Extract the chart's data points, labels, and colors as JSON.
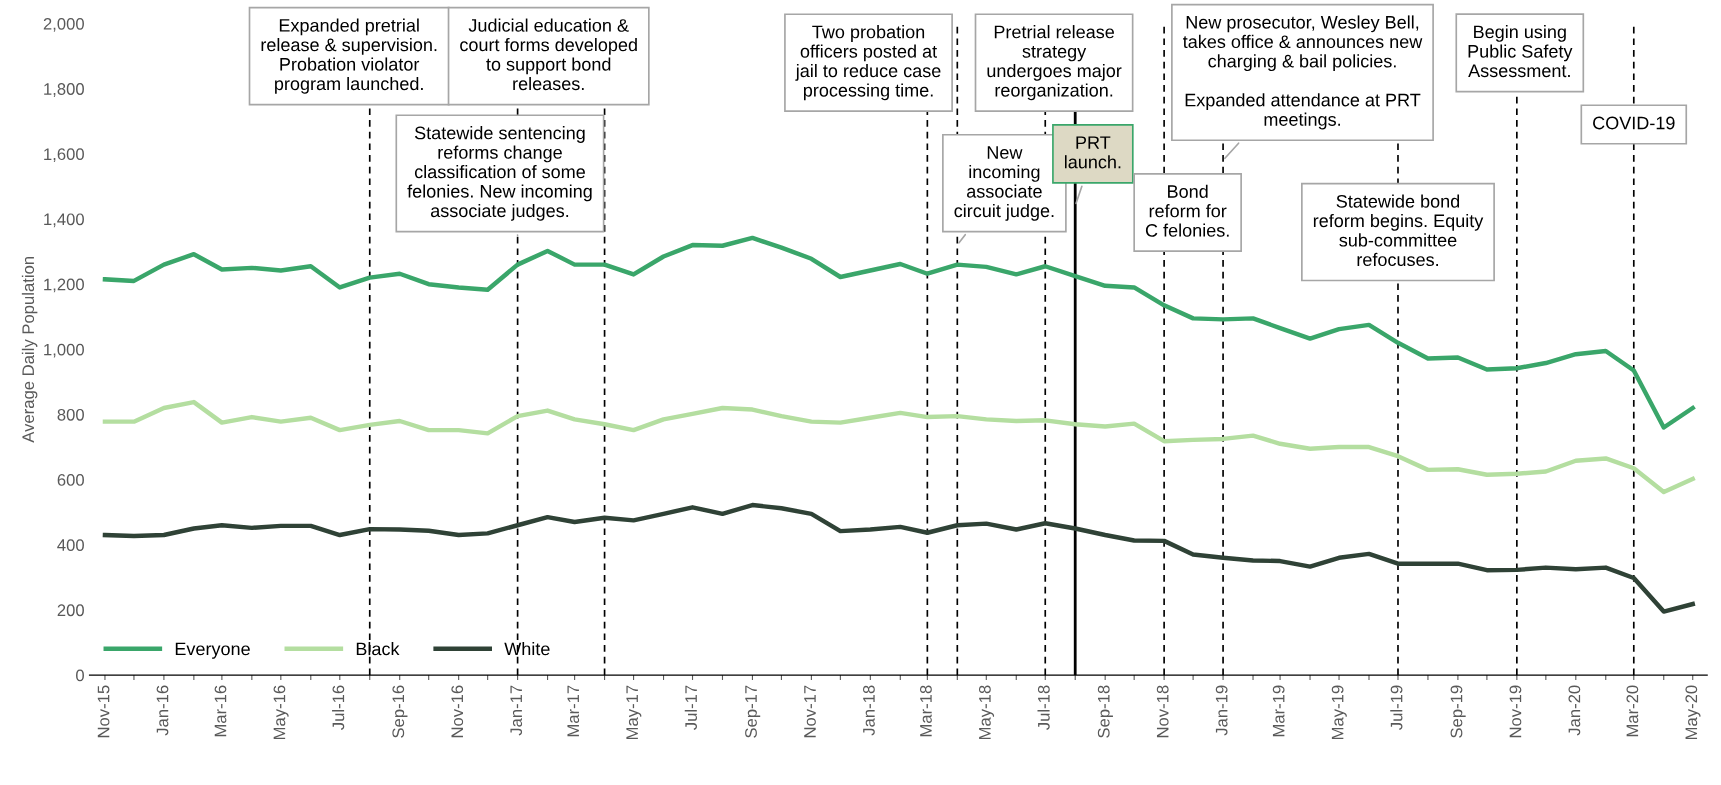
{
  "chart_data": {
    "type": "line",
    "ylabel": "Average Daily Population",
    "x": [
      "2015-11",
      "2015-12",
      "2016-01",
      "2016-02",
      "2016-03",
      "2016-04",
      "2016-05",
      "2016-06",
      "2016-07",
      "2016-08",
      "2016-09",
      "2016-10",
      "2016-11",
      "2016-12",
      "2017-01",
      "2017-02",
      "2017-03",
      "2017-04",
      "2017-05",
      "2017-06",
      "2017-07",
      "2017-08",
      "2017-09",
      "2017-10",
      "2017-11",
      "2017-12",
      "2018-01",
      "2018-02",
      "2018-03",
      "2018-04",
      "2018-05",
      "2018-06",
      "2018-07",
      "2018-08",
      "2018-09",
      "2018-10",
      "2018-11",
      "2018-12",
      "2019-01",
      "2019-02",
      "2019-03",
      "2019-04",
      "2019-05",
      "2019-06",
      "2019-07",
      "2019-08",
      "2019-09",
      "2019-10",
      "2019-11",
      "2019-12",
      "2020-01",
      "2020-02",
      "2020-03",
      "2020-04",
      "2020-05"
    ],
    "series": [
      {
        "name": "Everyone",
        "color": "#3aa66a",
        "values": [
          1215,
          1210,
          1260,
          1292,
          1245,
          1250,
          1242,
          1255,
          1190,
          1220,
          1232,
          1200,
          1190,
          1183,
          1260,
          1302,
          1260,
          1260,
          1230,
          1285,
          1320,
          1318,
          1342,
          1312,
          1278,
          1222,
          1242,
          1262,
          1232,
          1260,
          1253,
          1230,
          1255,
          1225,
          1195,
          1190,
          1135,
          1095,
          1092,
          1095,
          1065,
          1033,
          1062,
          1075,
          1020,
          972,
          975,
          938,
          942,
          958,
          985,
          995,
          935,
          760,
          820
        ]
      },
      {
        "name": "Black",
        "color": "#b4dea0",
        "values": [
          778,
          778,
          820,
          838,
          775,
          792,
          778,
          790,
          752,
          768,
          780,
          752,
          752,
          742,
          795,
          812,
          785,
          770,
          752,
          785,
          802,
          820,
          815,
          795,
          778,
          775,
          790,
          805,
          792,
          795,
          785,
          780,
          782,
          770,
          763,
          772,
          718,
          722,
          725,
          735,
          710,
          695,
          700,
          700,
          672,
          630,
          632,
          615,
          618,
          625,
          658,
          665,
          635,
          562,
          602
        ]
      },
      {
        "name": "White",
        "color": "#2f4236",
        "values": [
          430,
          427,
          430,
          450,
          460,
          452,
          458,
          458,
          430,
          448,
          447,
          443,
          430,
          435,
          460,
          485,
          470,
          483,
          475,
          495,
          515,
          495,
          522,
          512,
          495,
          442,
          447,
          455,
          437,
          460,
          465,
          447,
          466,
          450,
          430,
          413,
          412,
          370,
          360,
          352,
          350,
          333,
          360,
          372,
          342,
          342,
          342,
          322,
          323,
          330,
          325,
          330,
          298,
          195,
          218
        ]
      }
    ],
    "xlim": [
      "2015-10-16",
      "2020-05-16"
    ],
    "xticks": [
      {
        "value": "2015-11",
        "label": "Nov-15"
      },
      {
        "value": "2015-12",
        "label": null
      },
      {
        "value": "2016-01",
        "label": "Jan-16"
      },
      {
        "value": "2016-02",
        "label": null
      },
      {
        "value": "2016-03",
        "label": "Mar-16"
      },
      {
        "value": "2016-04",
        "label": null
      },
      {
        "value": "2016-05",
        "label": "May-16"
      },
      {
        "value": "2016-06",
        "label": null
      },
      {
        "value": "2016-07",
        "label": "Jul-16"
      },
      {
        "value": "2016-08",
        "label": null
      },
      {
        "value": "2016-09",
        "label": "Sep-16"
      },
      {
        "value": "2016-10",
        "label": null
      },
      {
        "value": "2016-11",
        "label": "Nov-16"
      },
      {
        "value": "2016-12",
        "label": null
      },
      {
        "value": "2017-01",
        "label": "Jan-17"
      },
      {
        "value": "2017-02",
        "label": null
      },
      {
        "value": "2017-03",
        "label": "Mar-17"
      },
      {
        "value": "2017-04",
        "label": null
      },
      {
        "value": "2017-05",
        "label": "May-17"
      },
      {
        "value": "2017-06",
        "label": null
      },
      {
        "value": "2017-07",
        "label": "Jul-17"
      },
      {
        "value": "2017-08",
        "label": null
      },
      {
        "value": "2017-09",
        "label": "Sep-17"
      },
      {
        "value": "2017-10",
        "label": null
      },
      {
        "value": "2017-11",
        "label": "Nov-17"
      },
      {
        "value": "2017-12",
        "label": null
      },
      {
        "value": "2018-01",
        "label": "Jan-18"
      },
      {
        "value": "2018-02",
        "label": null
      },
      {
        "value": "2018-03",
        "label": "Mar-18"
      },
      {
        "value": "2018-04",
        "label": null
      },
      {
        "value": "2018-05",
        "label": "May-18"
      },
      {
        "value": "2018-06",
        "label": null
      },
      {
        "value": "2018-07",
        "label": "Jul-18"
      },
      {
        "value": "2018-08",
        "label": null
      },
      {
        "value": "2018-09",
        "label": "Sep-18"
      },
      {
        "value": "2018-10",
        "label": null
      },
      {
        "value": "2018-11",
        "label": "Nov-18"
      },
      {
        "value": "2018-12",
        "label": null
      },
      {
        "value": "2019-01",
        "label": "Jan-19"
      },
      {
        "value": "2019-02",
        "label": null
      },
      {
        "value": "2019-03",
        "label": "Mar-19"
      },
      {
        "value": "2019-04",
        "label": null
      },
      {
        "value": "2019-05",
        "label": "May-19"
      },
      {
        "value": "2019-06",
        "label": null
      },
      {
        "value": "2019-07",
        "label": "Jul-19"
      },
      {
        "value": "2019-08",
        "label": null
      },
      {
        "value": "2019-09",
        "label": "Sep-19"
      },
      {
        "value": "2019-10",
        "label": null
      },
      {
        "value": "2019-11",
        "label": "Nov-19"
      },
      {
        "value": "2019-12",
        "label": null
      },
      {
        "value": "2020-01",
        "label": "Jan-20"
      },
      {
        "value": "2020-02",
        "label": null
      },
      {
        "value": "2020-03",
        "label": "Mar-20"
      },
      {
        "value": "2020-04",
        "label": null
      },
      {
        "value": "2020-05",
        "label": "May-20"
      }
    ],
    "ylim": [
      0,
      2000
    ],
    "yticks": [
      0,
      {
        "value": 200,
        "label": "200"
      },
      {
        "value": 400,
        "label": "400"
      },
      {
        "value": 600,
        "label": "600"
      },
      {
        "value": 800,
        "label": "800"
      },
      {
        "value": 1000,
        "label": "1,000"
      },
      {
        "value": 1200,
        "label": "1,200"
      },
      {
        "value": 1400,
        "label": "1,400"
      },
      {
        "value": 1600,
        "label": "1,600"
      },
      {
        "value": 1800,
        "label": "1,800"
      },
      {
        "value": 2000,
        "label": "2,000"
      }
    ],
    "ref_lines": [
      {
        "axis": "x",
        "value": "2016-08",
        "line_style": "dashed",
        "label": "Expanded pretrial\nrelease & supervision.\nProbation violator\nprogram launched."
      },
      {
        "axis": "x",
        "value": "2017-01",
        "line_style": "dashed",
        "label": "Statewide sentencing\nreforms change\nclassification of some\nfelonies. New incoming\nassociate judges."
      },
      {
        "axis": "x",
        "value": "2017-04",
        "line_style": "dashed",
        "label": "Judicial education &\ncourt forms developed\nto support bond\nreleases."
      },
      {
        "axis": "x",
        "value": "2018-03",
        "line_style": "dashed",
        "label": "Two probation\nofficers posted at\njail to reduce case\nprocessing time."
      },
      {
        "axis": "x",
        "value": "2018-04",
        "line_style": "dashed",
        "label": "New\nincoming\nassociate\ncircuit judge."
      },
      {
        "axis": "x",
        "value": "2018-07",
        "line_style": "dashed",
        "label": "Pretrial release\nstrategy\nundergoes major\nreorganization."
      },
      {
        "axis": "x",
        "value": "2018-08",
        "line_style": "solid",
        "label": "PRT\nlaunch."
      },
      {
        "axis": "x",
        "value": "2018-11",
        "line_style": "dashed",
        "label": "Bond\nreform for\nC felonies."
      },
      {
        "axis": "x",
        "value": "2019-01",
        "line_style": "dashed",
        "label": "New prosecutor, Wesley Bell,\ntakes office & announces new\ncharging & bail policies.\n\nExpanded attendance at PRT\nmeetings."
      },
      {
        "axis": "x",
        "value": "2019-07",
        "line_style": "dashed",
        "label": "Statewide bond\nreform begins. Equity\nsub-committee\nrefocuses."
      },
      {
        "axis": "x",
        "value": "2019-11",
        "line_style": "dashed",
        "label": "Begin using\nPublic Safety\nAssessment."
      },
      {
        "axis": "x",
        "value": "2020-03",
        "line_style": "dashed",
        "label": "COVID-19"
      }
    ],
    "legend": "bottom left",
    "grid": false,
    "marker": "none",
    "line_style": "solid"
  }
}
